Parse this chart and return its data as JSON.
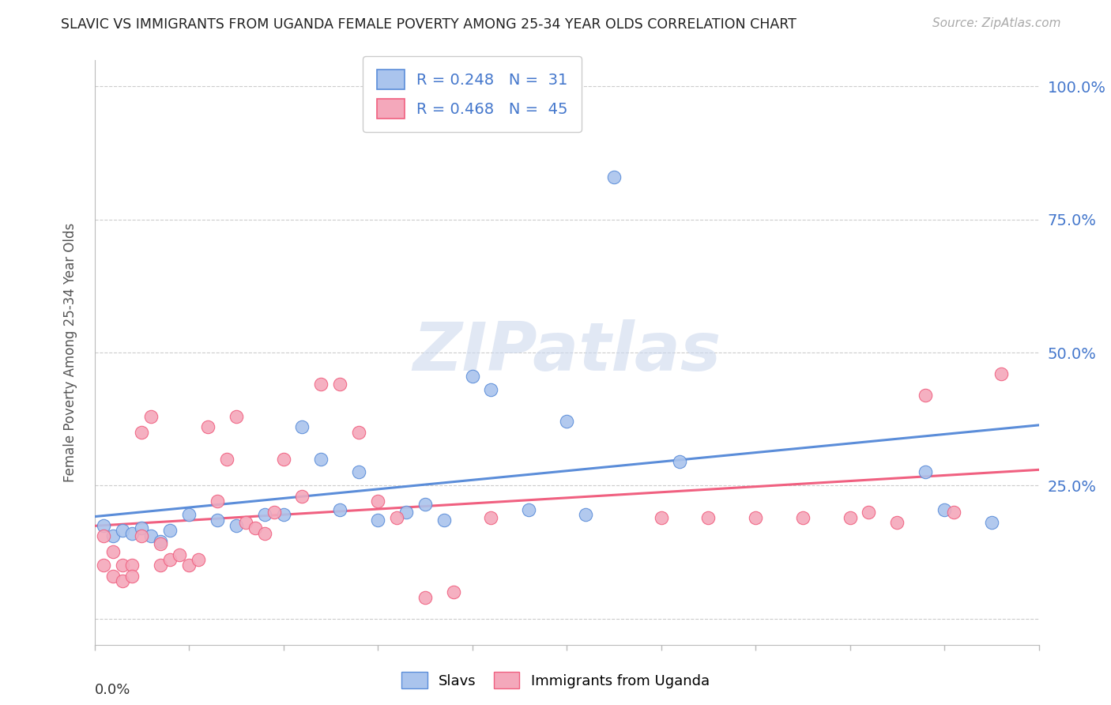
{
  "title": "SLAVIC VS IMMIGRANTS FROM UGANDA FEMALE POVERTY AMONG 25-34 YEAR OLDS CORRELATION CHART",
  "source": "Source: ZipAtlas.com",
  "ylabel": "Female Poverty Among 25-34 Year Olds",
  "ytick_labels": [
    "",
    "25.0%",
    "50.0%",
    "75.0%",
    "100.0%"
  ],
  "ytick_values": [
    0.0,
    0.25,
    0.5,
    0.75,
    1.0
  ],
  "xmin": 0.0,
  "xmax": 0.1,
  "ymin": -0.05,
  "ymax": 1.05,
  "watermark": "ZIPatlas",
  "legend_blue_r": "R = 0.248",
  "legend_blue_n": "N =  31",
  "legend_pink_r": "R = 0.468",
  "legend_pink_n": "N =  45",
  "blue_color": "#aac4ed",
  "pink_color": "#f4a8bb",
  "blue_line_color": "#5b8dd9",
  "pink_line_color": "#f06080",
  "slavs_x": [
    0.001,
    0.002,
    0.003,
    0.004,
    0.005,
    0.006,
    0.007,
    0.008,
    0.01,
    0.013,
    0.015,
    0.018,
    0.02,
    0.022,
    0.024,
    0.026,
    0.028,
    0.03,
    0.033,
    0.035,
    0.037,
    0.04,
    0.042,
    0.046,
    0.05,
    0.052,
    0.055,
    0.062,
    0.088,
    0.09,
    0.095
  ],
  "slavs_y": [
    0.175,
    0.155,
    0.165,
    0.16,
    0.17,
    0.155,
    0.145,
    0.165,
    0.195,
    0.185,
    0.175,
    0.195,
    0.195,
    0.36,
    0.3,
    0.205,
    0.275,
    0.185,
    0.2,
    0.215,
    0.185,
    0.455,
    0.43,
    0.205,
    0.37,
    0.195,
    0.83,
    0.295,
    0.275,
    0.205,
    0.18
  ],
  "uganda_x": [
    0.001,
    0.001,
    0.002,
    0.002,
    0.003,
    0.003,
    0.004,
    0.004,
    0.005,
    0.005,
    0.006,
    0.007,
    0.007,
    0.008,
    0.009,
    0.01,
    0.011,
    0.012,
    0.013,
    0.014,
    0.015,
    0.016,
    0.017,
    0.018,
    0.019,
    0.02,
    0.022,
    0.024,
    0.026,
    0.028,
    0.03,
    0.032,
    0.035,
    0.038,
    0.042,
    0.06,
    0.065,
    0.07,
    0.075,
    0.08,
    0.082,
    0.085,
    0.088,
    0.091,
    0.096
  ],
  "uganda_y": [
    0.155,
    0.1,
    0.125,
    0.08,
    0.1,
    0.07,
    0.1,
    0.08,
    0.35,
    0.155,
    0.38,
    0.14,
    0.1,
    0.11,
    0.12,
    0.1,
    0.11,
    0.36,
    0.22,
    0.3,
    0.38,
    0.18,
    0.17,
    0.16,
    0.2,
    0.3,
    0.23,
    0.44,
    0.44,
    0.35,
    0.22,
    0.19,
    0.04,
    0.05,
    0.19,
    0.19,
    0.19,
    0.19,
    0.19,
    0.19,
    0.2,
    0.18,
    0.42,
    0.2,
    0.46
  ],
  "grid_color": "#cccccc",
  "background_color": "#ffffff",
  "title_color": "#222222",
  "axis_label_color": "#555555",
  "right_axis_color": "#4477cc"
}
